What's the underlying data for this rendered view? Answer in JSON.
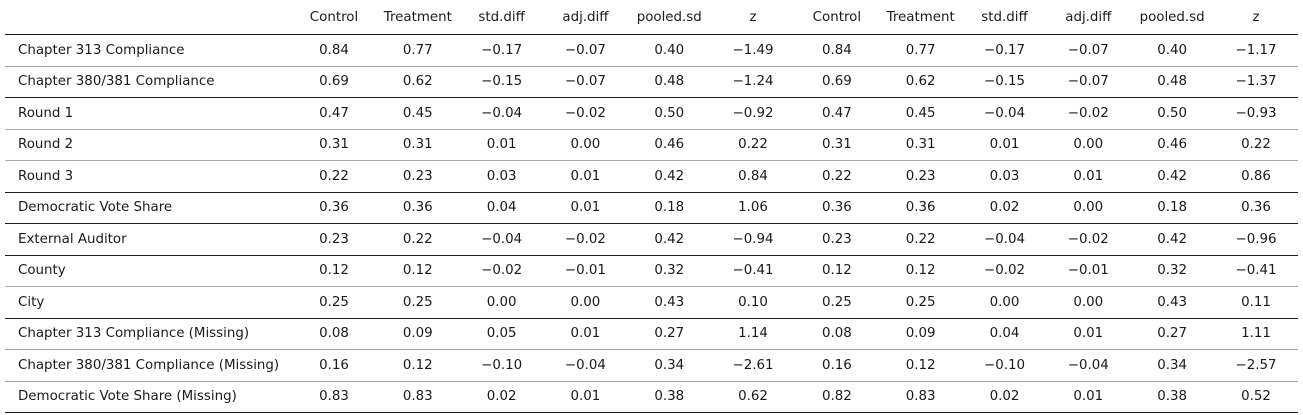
{
  "table": {
    "columns": [
      "",
      "Control",
      "Treatment",
      "std.diff",
      "adj.diff",
      "pooled.sd",
      "z",
      "Control",
      "Treatment",
      "std.diff",
      "adj.diff",
      "pooled.sd",
      "z"
    ],
    "rows": [
      {
        "label": "Chapter 313 Compliance",
        "values": [
          "0.84",
          "0.77",
          "−0.17",
          "−0.07",
          "0.40",
          "−1.49",
          "0.84",
          "0.77",
          "−0.17",
          "−0.07",
          "0.40",
          "−1.17"
        ]
      },
      {
        "label": "Chapter 380/381 Compliance",
        "values": [
          "0.69",
          "0.62",
          "−0.15",
          "−0.07",
          "0.48",
          "−1.24",
          "0.69",
          "0.62",
          "−0.15",
          "−0.07",
          "0.48",
          "−1.37"
        ]
      },
      {
        "label": "Round 1",
        "values": [
          "0.47",
          "0.45",
          "−0.04",
          "−0.02",
          "0.50",
          "−0.92",
          "0.47",
          "0.45",
          "−0.04",
          "−0.02",
          "0.50",
          "−0.93"
        ]
      },
      {
        "label": "Round 2",
        "values": [
          "0.31",
          "0.31",
          "0.01",
          "0.00",
          "0.46",
          "0.22",
          "0.31",
          "0.31",
          "0.01",
          "0.00",
          "0.46",
          "0.22"
        ]
      },
      {
        "label": "Round 3",
        "values": [
          "0.22",
          "0.23",
          "0.03",
          "0.01",
          "0.42",
          "0.84",
          "0.22",
          "0.23",
          "0.03",
          "0.01",
          "0.42",
          "0.86"
        ]
      },
      {
        "label": "Democratic Vote Share",
        "values": [
          "0.36",
          "0.36",
          "0.04",
          "0.01",
          "0.18",
          "1.06",
          "0.36",
          "0.36",
          "0.02",
          "0.00",
          "0.18",
          "0.36"
        ]
      },
      {
        "label": "External Auditor",
        "values": [
          "0.23",
          "0.22",
          "−0.04",
          "−0.02",
          "0.42",
          "−0.94",
          "0.23",
          "0.22",
          "−0.04",
          "−0.02",
          "0.42",
          "−0.96"
        ]
      },
      {
        "label": "County",
        "values": [
          "0.12",
          "0.12",
          "−0.02",
          "−0.01",
          "0.32",
          "−0.41",
          "0.12",
          "0.12",
          "−0.02",
          "−0.01",
          "0.32",
          "−0.41"
        ]
      },
      {
        "label": "City",
        "values": [
          "0.25",
          "0.25",
          "0.00",
          "0.00",
          "0.43",
          "0.10",
          "0.25",
          "0.25",
          "0.00",
          "0.00",
          "0.43",
          "0.11"
        ]
      },
      {
        "label": "Chapter 313 Compliance (Missing)",
        "values": [
          "0.08",
          "0.09",
          "0.05",
          "0.01",
          "0.27",
          "1.14",
          "0.08",
          "0.09",
          "0.04",
          "0.01",
          "0.27",
          "1.11"
        ]
      },
      {
        "label": "Chapter 380/381 Compliance (Missing)",
        "values": [
          "0.16",
          "0.12",
          "−0.10",
          "−0.04",
          "0.34",
          "−2.61",
          "0.16",
          "0.12",
          "−0.10",
          "−0.04",
          "0.34",
          "−2.57"
        ]
      },
      {
        "label": "Democratic Vote Share (Missing)",
        "values": [
          "0.83",
          "0.83",
          "0.02",
          "0.01",
          "0.38",
          "0.62",
          "0.82",
          "0.83",
          "0.02",
          "0.01",
          "0.38",
          "0.52"
        ]
      }
    ]
  }
}
